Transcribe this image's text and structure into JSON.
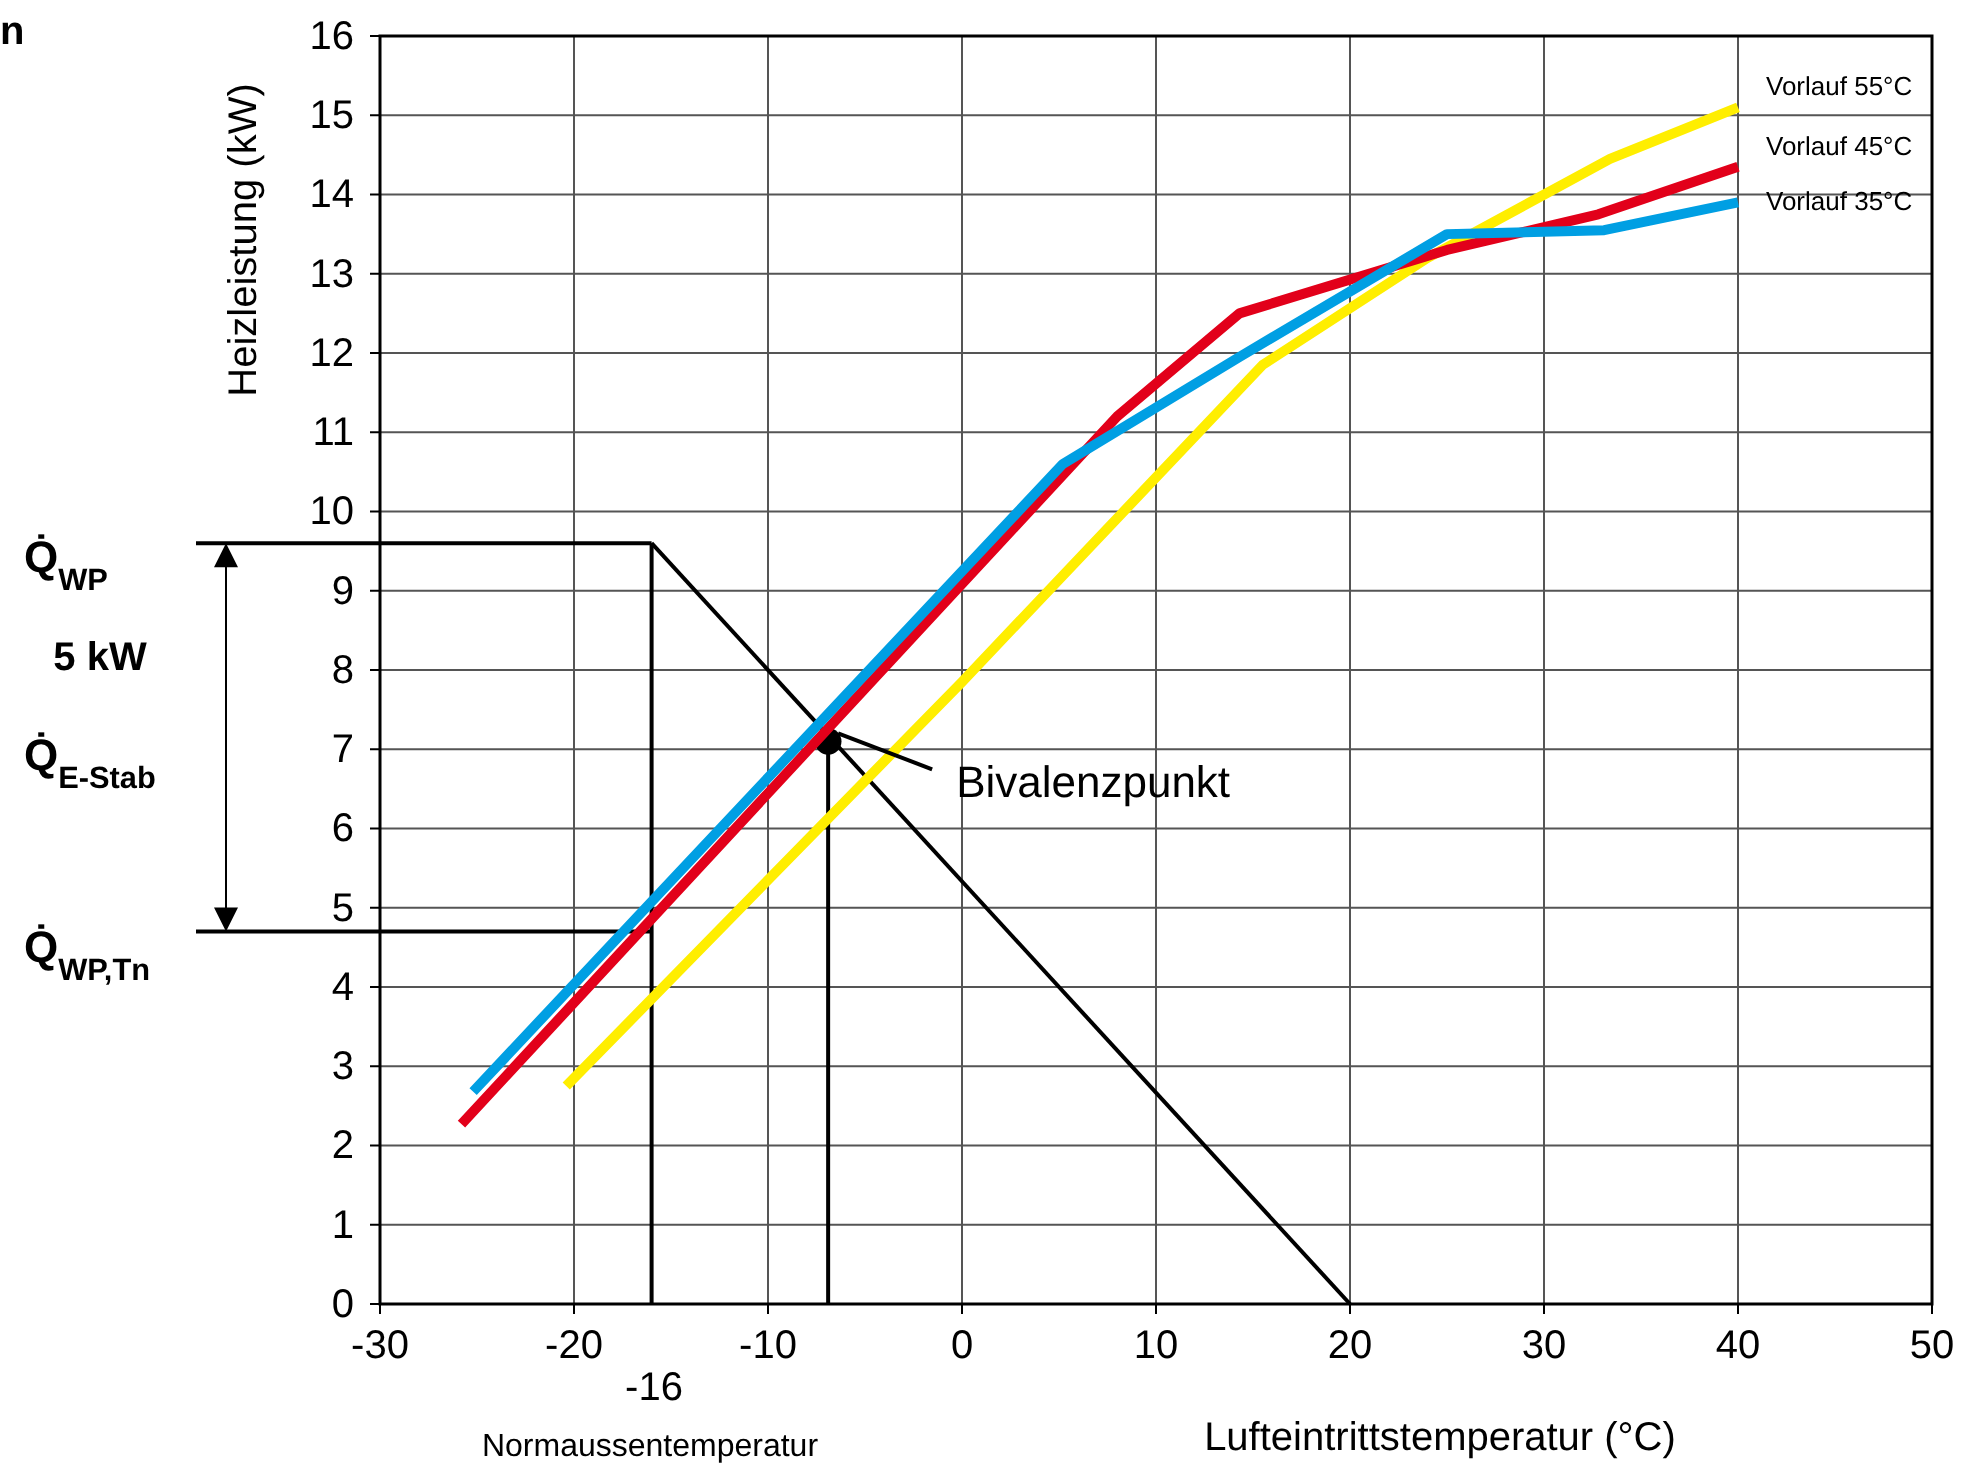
{
  "chart_data": {
    "type": "line",
    "ylabel": "Heizleistung (kW)",
    "xlabel": "Lufteintrittstemperatur (°C)",
    "xlim": [
      -30,
      50
    ],
    "xticks": [
      -30,
      -20,
      -10,
      0,
      10,
      20,
      30,
      40,
      50
    ],
    "ylim": [
      0,
      16
    ],
    "yticks": [
      0,
      1,
      2,
      3,
      4,
      5,
      6,
      7,
      8,
      9,
      10,
      11,
      12,
      13,
      14,
      15,
      16
    ],
    "grid": true,
    "legend": false,
    "series": [
      {
        "name": "Vorlauf 55°C",
        "color": "#ffee00",
        "x": [
          -20.4,
          0,
          15.5,
          24,
          33.4,
          40
        ],
        "values": [
          2.75,
          7.85,
          11.85,
          13.2,
          14.45,
          15.1
        ]
      },
      {
        "name": "Vorlauf 45°C",
        "color": "#e2001a",
        "x": [
          -25.8,
          8,
          14.3,
          25,
          32.8,
          40
        ],
        "values": [
          2.27,
          11.2,
          12.5,
          13.3,
          13.75,
          14.35
        ]
      },
      {
        "name": "Vorlauf 35°C",
        "color": "#009fe3",
        "x": [
          -25.2,
          5.2,
          14.3,
          25,
          33.1,
          40
        ],
        "values": [
          2.68,
          10.6,
          11.95,
          13.5,
          13.55,
          13.9
        ]
      },
      {
        "color": "#000000",
        "x": [
          -16,
          20
        ],
        "values": [
          9.6,
          0
        ]
      },
      {
        "color": "#000000",
        "x": [
          -30,
          -16
        ],
        "values": [
          9.6,
          9.6
        ]
      },
      {
        "color": "#000000",
        "x": [
          -30,
          -16
        ],
        "values": [
          4.7,
          4.7
        ]
      },
      {
        "color": "#000000",
        "x": [
          -16,
          -16
        ],
        "values": [
          0,
          9.6
        ]
      },
      {
        "color": "#000000",
        "x": [
          -6.9,
          -6.9
        ],
        "values": [
          0,
          7.1
        ]
      },
      {
        "type": "scatter",
        "marker": "circle",
        "color": "#000000",
        "x": [
          -6.9
        ],
        "values": [
          7.1
        ]
      }
    ],
    "annotations": [
      {
        "text": "Bivalenzpunkt",
        "x": -6.9,
        "y": 7.1
      },
      "Q̇$_{WP}$",
      "Q̇$_{WP,Tn}$",
      "-16",
      "5 kW",
      "Q̇$_{E-Stab}$",
      "Normaussentemperatur",
      "n"
    ]
  }
}
